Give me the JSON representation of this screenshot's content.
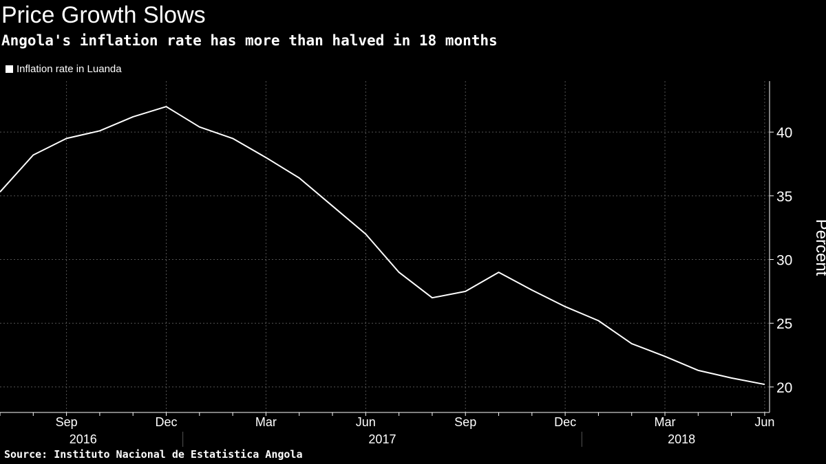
{
  "chart_data": {
    "type": "line",
    "title": "Price Growth Slows",
    "subtitle": "Angola's inflation rate has more than halved in 18 months",
    "ylabel": "Percent",
    "xlabel": "",
    "ylim": [
      18,
      44
    ],
    "yticks": [
      20,
      25,
      30,
      35,
      40
    ],
    "series": [
      {
        "name": "Inflation rate in Luanda",
        "color": "#ffffff",
        "x": [
          "2016-07",
          "2016-08",
          "2016-09",
          "2016-10",
          "2016-11",
          "2016-12",
          "2017-01",
          "2017-02",
          "2017-03",
          "2017-04",
          "2017-05",
          "2017-06",
          "2017-07",
          "2017-08",
          "2017-09",
          "2017-10",
          "2017-11",
          "2017-12",
          "2018-01",
          "2018-02",
          "2018-03",
          "2018-04",
          "2018-05",
          "2018-06"
        ],
        "values": [
          35.3,
          38.2,
          39.5,
          40.1,
          41.2,
          42.0,
          40.4,
          39.5,
          38.0,
          36.4,
          34.2,
          32.0,
          29.0,
          27.0,
          27.5,
          29.0,
          27.6,
          26.3,
          25.2,
          23.4,
          22.4,
          21.3,
          20.7,
          20.2
        ]
      }
    ],
    "x_month_labels": [
      {
        "month": "2016-09",
        "label": "Sep"
      },
      {
        "month": "2016-12",
        "label": "Dec"
      },
      {
        "month": "2017-03",
        "label": "Mar"
      },
      {
        "month": "2017-06",
        "label": "Jun"
      },
      {
        "month": "2017-09",
        "label": "Sep"
      },
      {
        "month": "2017-12",
        "label": "Dec"
      },
      {
        "month": "2018-03",
        "label": "Mar"
      },
      {
        "month": "2018-06",
        "label": "Jun"
      }
    ],
    "x_year_labels": [
      {
        "label": "2016",
        "from": "2016-07",
        "to": "2016-12"
      },
      {
        "label": "2017",
        "from": "2017-01",
        "to": "2017-12"
      },
      {
        "label": "2018",
        "from": "2018-01",
        "to": "2018-06"
      }
    ],
    "grid": true,
    "legend_position": "top-left"
  },
  "source": "Source: Instituto Nacional de Estatistica Angola",
  "colors": {
    "background": "#000000",
    "line": "#ffffff",
    "grid": "#555555",
    "text": "#ffffff"
  }
}
